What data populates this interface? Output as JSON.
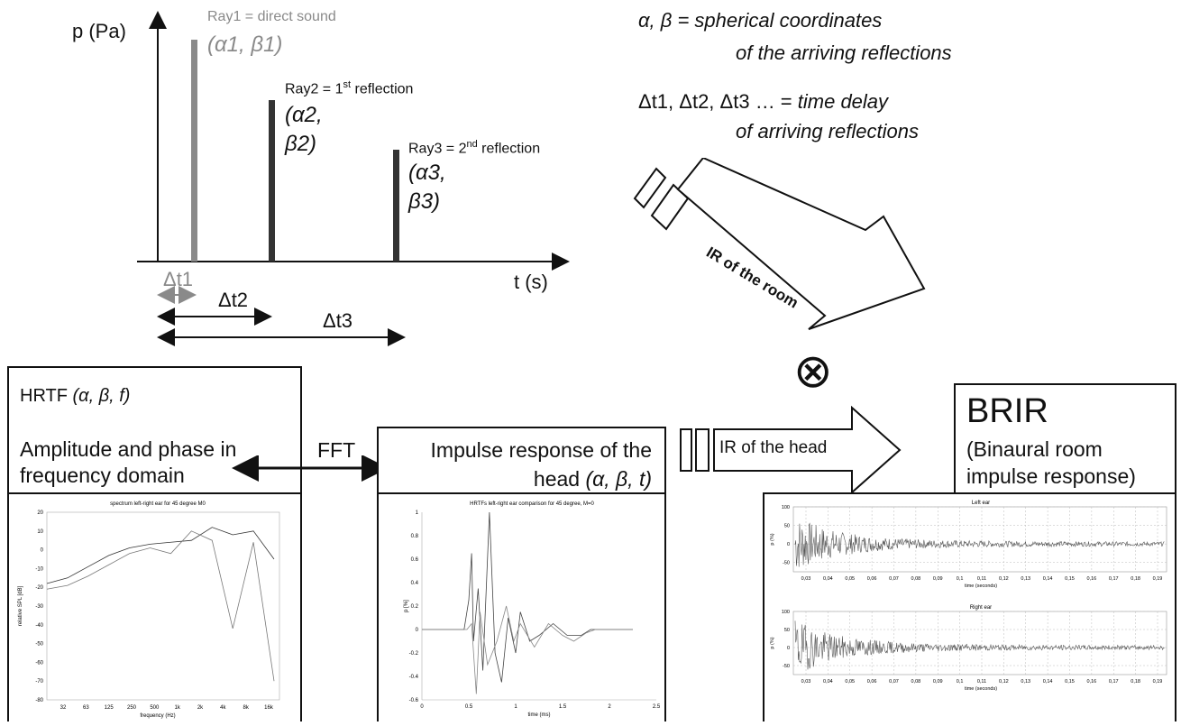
{
  "impulse": {
    "y_axis": "p (Pa)",
    "x_axis": "t (s)",
    "ray1": {
      "label": "Ray1 = direct sound",
      "coord": "(α1, β1)"
    },
    "ray2": {
      "label_pre": "Ray2 = 1",
      "label_sup": "st",
      "label_post": " reflection",
      "coord_a": "(α2,",
      "coord_b": "β2)"
    },
    "ray3": {
      "label_pre": "Ray3 = 2",
      "label_sup": "nd",
      "label_post": " reflection",
      "coord_a": "(α3,",
      "coord_b": "β3)"
    },
    "dt1": "Δt1",
    "dt2": "Δt2",
    "dt3": "Δt3"
  },
  "legend": {
    "line1": "α, β = spherical coordinates",
    "line2": "of the arriving reflections",
    "line3_pre": "Δt1, Δt2, Δt3 … =",
    "line3_it": " time delay",
    "line4": "of arriving reflections"
  },
  "arrows": {
    "ir_room": "IR of the room",
    "ir_head": "IR of the head",
    "convolve": "⊗",
    "fft": "FFT"
  },
  "hrtf_box": {
    "title_pre": "HRTF ",
    "title_it": "(α, β, f)",
    "line1": "Amplitude and phase in",
    "line2": "frequency domain"
  },
  "impulse_box": {
    "line1": "Impulse response of the",
    "line2_pre": "head ",
    "line2_it": "(α, β, t)"
  },
  "brir_box": {
    "title": "BRIR",
    "line1": "(Binaural room",
    "line2": "impulse response)"
  },
  "chart_data": [
    {
      "type": "line",
      "title": "spectrum left-right ear for 45 degree M0",
      "xlabel": "frequency (Hz)",
      "ylabel": "relative SPL [dB]",
      "xticks": [
        "32",
        "63",
        "125",
        "250",
        "500",
        "1k",
        "2k",
        "4k",
        "8k",
        "16k"
      ],
      "yticks": [
        20,
        10,
        0,
        -10,
        -20,
        -30,
        -40,
        -50,
        -60,
        -70,
        -80
      ],
      "ylim": [
        -80,
        20
      ],
      "series": [
        {
          "values": [
            -18,
            -15,
            -9,
            -3,
            1,
            3,
            4,
            5,
            12,
            8,
            10,
            -5
          ]
        },
        {
          "values": [
            -21,
            -19,
            -14,
            -8,
            -2,
            1,
            -2,
            10,
            5,
            -42,
            4,
            -70
          ]
        }
      ]
    },
    {
      "type": "line",
      "title": "HRTFs left-right ear comparison for 45 degree, M=0",
      "xlabel": "time (ms)",
      "ylabel": "p [%]",
      "xticks": [
        "0",
        "0.5",
        "1",
        "1.5",
        "2",
        "2.5"
      ],
      "yticks": [
        1,
        0.8,
        0.6,
        0.4,
        0.2,
        0,
        -0.2,
        -0.4,
        -0.6
      ],
      "xlim": [
        0,
        2.5
      ],
      "ylim": [
        -0.6,
        1
      ]
    },
    {
      "type": "line",
      "title": "Left ear",
      "xlabel": "time (seconds)",
      "ylabel": "p (%)",
      "xticks": [
        "0,03",
        "0,04",
        "0,05",
        "0,06",
        "0,07",
        "0,08",
        "0,09",
        "0,1",
        "0,11",
        "0,12",
        "0,13",
        "0,14",
        "0,15",
        "0,16",
        "0,17",
        "0,18",
        "0,19"
      ],
      "yticks": [
        100,
        50,
        0,
        -50
      ],
      "ylim": [
        -75,
        100
      ]
    },
    {
      "type": "line",
      "title": "Right ear",
      "xlabel": "time (seconds)",
      "ylabel": "p (%)",
      "xticks": [
        "0,03",
        "0,04",
        "0,05",
        "0,06",
        "0,07",
        "0,08",
        "0,09",
        "0,1",
        "0,11",
        "0,12",
        "0,13",
        "0,14",
        "0,15",
        "0,16",
        "0,17",
        "0,18",
        "0,19"
      ],
      "yticks": [
        100,
        50,
        0,
        -50
      ],
      "ylim": [
        -75,
        100
      ]
    }
  ]
}
